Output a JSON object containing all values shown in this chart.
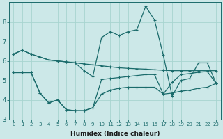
{
  "xlabel": "Humidex (Indice chaleur)",
  "bg_color": "#cce8e8",
  "grid_color": "#a8d4d0",
  "line_color": "#1a6b6b",
  "x": [
    0,
    1,
    2,
    3,
    4,
    5,
    6,
    7,
    8,
    9,
    10,
    11,
    12,
    13,
    14,
    15,
    16,
    17,
    18,
    19,
    20,
    21,
    22,
    23
  ],
  "line1": [
    6.35,
    6.55,
    6.35,
    6.2,
    6.05,
    6.0,
    5.95,
    5.9,
    5.85,
    5.8,
    5.75,
    5.7,
    5.65,
    5.62,
    5.6,
    5.58,
    5.55,
    5.52,
    5.5,
    5.5,
    5.5,
    5.5,
    5.5,
    5.5
  ],
  "line2": [
    6.35,
    6.55,
    6.35,
    6.2,
    6.05,
    6.0,
    5.95,
    5.9,
    5.5,
    5.2,
    7.2,
    7.5,
    7.3,
    7.5,
    7.6,
    8.8,
    8.1,
    6.3,
    4.2,
    5.0,
    5.1,
    5.9,
    5.9,
    4.85
  ],
  "line3": [
    5.4,
    5.4,
    5.4,
    4.35,
    3.85,
    4.0,
    3.5,
    3.45,
    3.45,
    3.6,
    4.3,
    4.5,
    4.6,
    4.65,
    4.65,
    4.65,
    4.65,
    4.3,
    4.35,
    4.45,
    4.5,
    4.6,
    4.65,
    4.85
  ],
  "line4": [
    5.4,
    5.4,
    5.4,
    4.35,
    3.85,
    4.0,
    3.5,
    3.45,
    3.45,
    3.6,
    5.05,
    5.1,
    5.15,
    5.2,
    5.25,
    5.3,
    5.3,
    4.3,
    4.9,
    5.3,
    5.35,
    5.42,
    5.45,
    4.85
  ],
  "ylim": [
    3,
    9
  ],
  "yticks": [
    3,
    4,
    5,
    6,
    7,
    8
  ],
  "xticks": [
    0,
    1,
    2,
    3,
    4,
    5,
    6,
    7,
    8,
    9,
    10,
    11,
    12,
    13,
    14,
    15,
    16,
    17,
    18,
    19,
    20,
    21,
    22,
    23
  ],
  "xlabel_fontsize": 6.5,
  "tick_fontsize_x": 5.0,
  "tick_fontsize_y": 6.0
}
